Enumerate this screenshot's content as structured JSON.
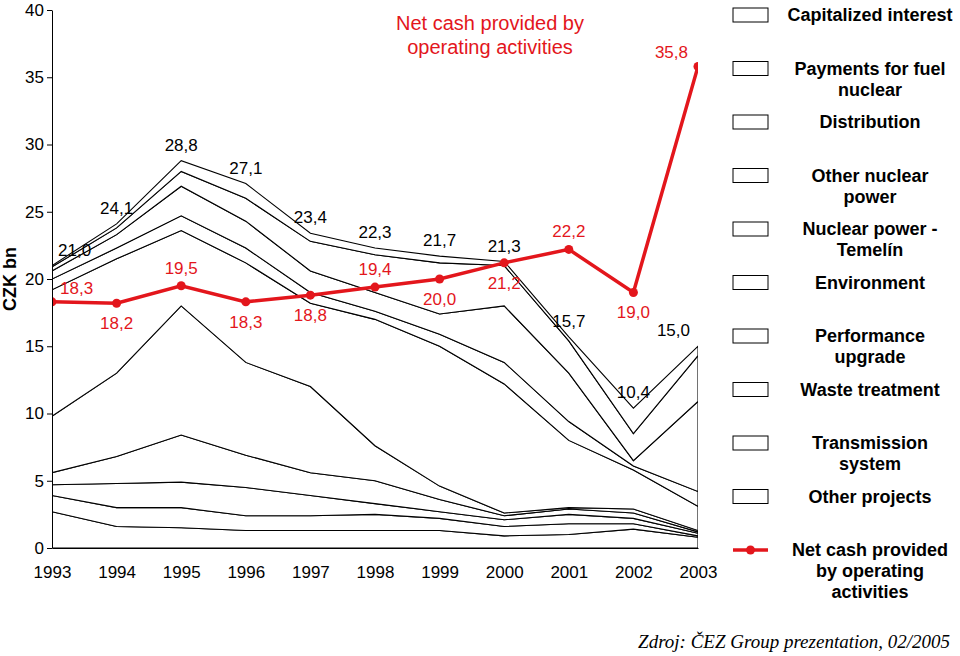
{
  "chart_data": {
    "type": "area",
    "title": "Net cash provided by operating activities",
    "ylabel": "CZK bn",
    "stacked": true,
    "grid": false,
    "data_labels": true,
    "legend": "right",
    "categories": [
      "1993",
      "1994",
      "1995",
      "1996",
      "1997",
      "1998",
      "1999",
      "2000",
      "2001",
      "2002",
      "2003"
    ],
    "ylim": [
      0,
      40
    ],
    "yticks": [
      0,
      5,
      10,
      15,
      20,
      25,
      30,
      35,
      40
    ],
    "series": [
      {
        "name": "Capitalized interest",
        "type": "area",
        "color": "#ffffff",
        "values": [
          0.1,
          0.3,
          0.8,
          1.1,
          0.6,
          0.5,
          0.5,
          0.3,
          0.3,
          1.9,
          0.7
        ]
      },
      {
        "name": "Payments for fuel nuclear",
        "type": "area",
        "color": "#ffffff",
        "values": [
          0.3,
          0.5,
          1.1,
          1.7,
          2.2,
          2.8,
          3.8,
          3.0,
          2.4,
          2.0,
          3.4
        ]
      },
      {
        "name": "Distribution",
        "type": "area",
        "color": "#ffffff",
        "values": [
          0.6,
          1.0,
          2.2,
          2.0,
          1.6,
          1.4,
          1.5,
          4.2,
          3.6,
          0.4,
          6.7
        ]
      },
      {
        "name": "Other nuclear power",
        "type": "area",
        "color": "#ffffff",
        "values": [
          0.8,
          0.8,
          1.1,
          1.1,
          0.8,
          0.6,
          0.9,
          1.6,
          1.4,
          0.3,
          1.1
        ]
      },
      {
        "name": "Nuclear power - Temelín",
        "type": "area",
        "color": "#ffffff",
        "values": [
          9.4,
          8.5,
          5.6,
          7.4,
          6.2,
          9.4,
          10.4,
          9.6,
          5.0,
          2.9,
          1.8
        ]
      },
      {
        "name": "Environment",
        "type": "area",
        "color": "#ffffff",
        "values": [
          4.2,
          6.2,
          9.6,
          6.9,
          6.4,
          2.6,
          1.0,
          0.2,
          0.1,
          0.3,
          0.1
        ]
      },
      {
        "name": "Performance upgrade",
        "type": "area",
        "color": "#ffffff",
        "values": [
          0.9,
          2.0,
          3.5,
          2.4,
          1.7,
          1.7,
          0.9,
          0.3,
          0.4,
          0.4,
          0.1
        ]
      },
      {
        "name": "Waste treatment",
        "type": "area",
        "color": "#ffffff",
        "values": [
          0.8,
          1.8,
          1.9,
          2.1,
          1.5,
          0.8,
          0.5,
          0.5,
          0.7,
          0.4,
          0.2
        ]
      },
      {
        "name": "Transmission system",
        "type": "area",
        "color": "#ffffff",
        "values": [
          1.2,
          1.4,
          1.5,
          1.1,
          1.1,
          1.2,
          0.9,
          0.7,
          0.8,
          0.4,
          0.1
        ]
      },
      {
        "name": "Other projects",
        "type": "area",
        "color": "#ffffff",
        "values": [
          2.7,
          1.6,
          1.5,
          1.3,
          1.3,
          1.3,
          1.3,
          0.9,
          1.0,
          1.4,
          0.8
        ]
      },
      {
        "name": "Net cash provided by operating activities",
        "type": "line",
        "color": "#e3161c",
        "marker": "circle",
        "line_style": "solid",
        "values": [
          18.3,
          18.2,
          19.5,
          18.3,
          18.8,
          19.4,
          20.0,
          21.2,
          22.2,
          19.0,
          35.8
        ],
        "value_labels": [
          "18,3",
          "18,2",
          "19,5",
          "18,3",
          "18,8",
          "19,4",
          "20,0",
          "21,2",
          "22,2",
          "19,0",
          "35,8"
        ]
      }
    ],
    "totals": {
      "values": [
        21.0,
        24.1,
        28.8,
        27.1,
        23.4,
        22.3,
        21.7,
        21.3,
        15.7,
        10.4,
        15.0
      ],
      "value_labels": [
        "21,0",
        "24,1",
        "28,8",
        "27,1",
        "23,4",
        "22,3",
        "21,7",
        "21,3",
        "15,7",
        "10,4",
        "15,0"
      ]
    },
    "annotations": [
      {
        "text": "Zdroj: ČEZ Group prezentation, 02/2005"
      }
    ]
  }
}
